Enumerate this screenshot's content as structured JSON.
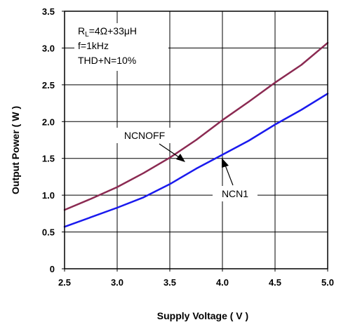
{
  "chart_data": {
    "type": "line",
    "xlabel": "Supply Voltage ( V )",
    "ylabel": "Output Power ( W )",
    "xlim": [
      2.5,
      5.0
    ],
    "ylim": [
      0,
      3.5
    ],
    "x_ticks": [
      "2.5",
      "3.0",
      "3.5",
      "4.0",
      "4.5",
      "5.0"
    ],
    "y_ticks": [
      "0",
      "0.5",
      "1.0",
      "1.5",
      "2.0",
      "2.5",
      "3.0",
      "3.5"
    ],
    "grid": true,
    "annotations": {
      "rl_prefix": "R",
      "rl_sub": "L",
      "rl_value": "=4Ω+33μH",
      "freq": "f=1kHz",
      "thd": "THD+N=10%"
    },
    "series": [
      {
        "name": "NCNOFF",
        "color": "#8b2a52",
        "x": [
          2.5,
          2.75,
          3.0,
          3.25,
          3.5,
          3.75,
          4.0,
          4.25,
          4.5,
          4.75,
          5.0
        ],
        "y": [
          0.8,
          0.95,
          1.11,
          1.3,
          1.51,
          1.75,
          2.02,
          2.27,
          2.53,
          2.77,
          3.07
        ]
      },
      {
        "name": "NCN1",
        "color": "#1a1aee",
        "x": [
          2.5,
          2.75,
          3.0,
          3.25,
          3.5,
          3.75,
          4.0,
          4.25,
          4.5,
          4.75,
          5.0
        ],
        "y": [
          0.57,
          0.7,
          0.83,
          0.97,
          1.15,
          1.36,
          1.55,
          1.74,
          1.96,
          2.16,
          2.38
        ]
      }
    ]
  }
}
